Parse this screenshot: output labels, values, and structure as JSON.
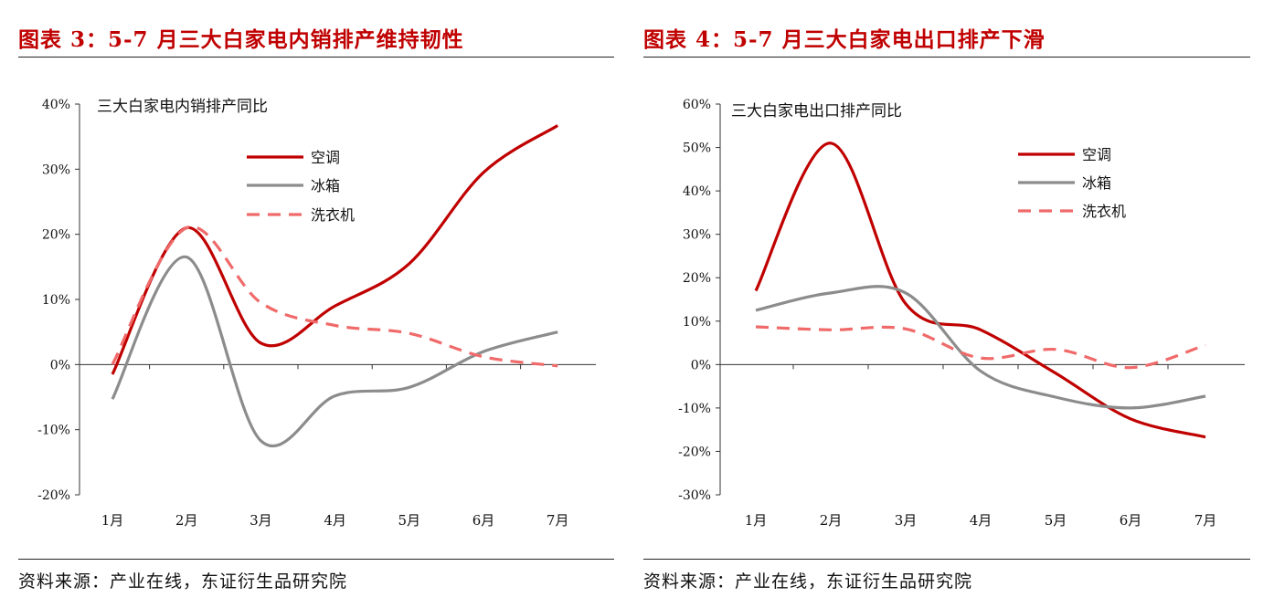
{
  "colors": {
    "title": "#c00000",
    "ac": "#c00000",
    "fridge": "#8c8c8c",
    "washer": "#f06a6a"
  },
  "left": {
    "title": "图表 3：5-7 月三大白家电内销排产维持韧性",
    "source": "资料来源：产业在线，东证衍生品研究院"
  },
  "right": {
    "title": "图表 4：5-7 月三大白家电出口排产下滑",
    "source": "资料来源：产业在线，东证衍生品研究院"
  },
  "chart_data": [
    {
      "type": "line",
      "title": "三大白家电内销排产同比",
      "categories": [
        "1月",
        "2月",
        "3月",
        "4月",
        "5月",
        "6月",
        "7月"
      ],
      "ylim": [
        -20,
        40
      ],
      "yticks": [
        -20,
        -10,
        0,
        10,
        20,
        30,
        40
      ],
      "ytick_labels": [
        "-20%",
        "-10%",
        "0%",
        "10%",
        "20%",
        "30%",
        "40%"
      ],
      "grid": false,
      "legend": "top-right",
      "series": [
        {
          "name": "空调",
          "values": [
            -1.5,
            21,
            3.3,
            9,
            15.5,
            29.5,
            36.7
          ]
        },
        {
          "name": "冰箱",
          "values": [
            -5.3,
            16.5,
            -11.7,
            -4.8,
            -3.5,
            2,
            5
          ]
        },
        {
          "name": "洗衣机",
          "values": [
            0,
            21,
            9.5,
            6,
            4.8,
            1.2,
            -0.2
          ]
        }
      ]
    },
    {
      "type": "line",
      "title": "三大白家电出口排产同比",
      "categories": [
        "1月",
        "2月",
        "3月",
        "4月",
        "5月",
        "6月",
        "7月"
      ],
      "ylim": [
        -30,
        60
      ],
      "yticks": [
        -30,
        -20,
        -10,
        0,
        10,
        20,
        30,
        40,
        50,
        60
      ],
      "ytick_labels": [
        "-30%",
        "-20%",
        "-10%",
        "0%",
        "10%",
        "20%",
        "30%",
        "40%",
        "50%",
        "60%"
      ],
      "grid": false,
      "legend": "top-right",
      "series": [
        {
          "name": "空调",
          "values": [
            17,
            51,
            14,
            8,
            -2,
            -12.5,
            -16.7
          ]
        },
        {
          "name": "冰箱",
          "values": [
            12.5,
            16.5,
            16.5,
            -1.5,
            -7.5,
            -10,
            -7.3
          ]
        },
        {
          "name": "洗衣机",
          "values": [
            8.7,
            8,
            8.2,
            1.5,
            3.5,
            -0.7,
            4.5
          ]
        }
      ]
    }
  ]
}
